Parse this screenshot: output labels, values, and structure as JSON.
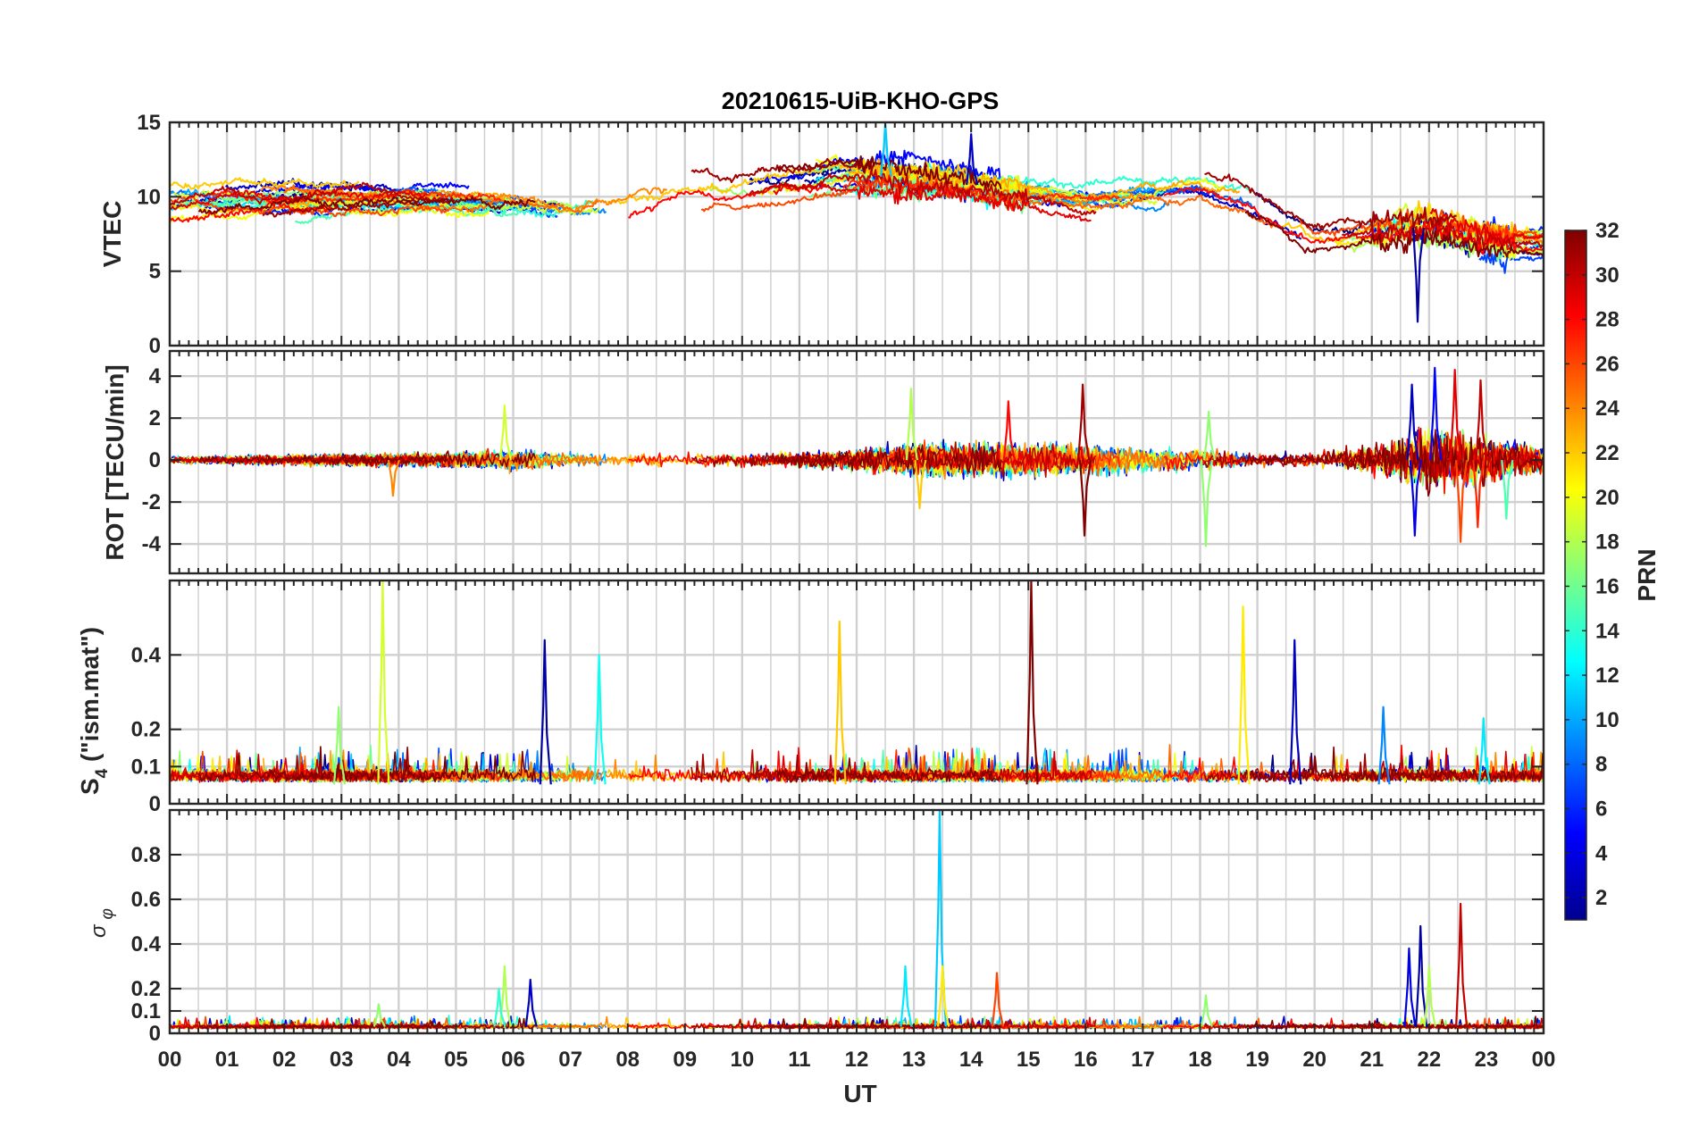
{
  "chart_data": {
    "type": "line",
    "title": "20210615-UiB-KHO-GPS",
    "xlabel": "UT",
    "x_tick_labels": [
      "00",
      "01",
      "02",
      "03",
      "04",
      "05",
      "06",
      "07",
      "08",
      "09",
      "10",
      "11",
      "12",
      "13",
      "14",
      "15",
      "16",
      "17",
      "18",
      "19",
      "20",
      "21",
      "22",
      "23",
      "00"
    ],
    "xlim_hours": [
      0,
      24
    ],
    "grid": true,
    "colormap": "jet",
    "colorbar": {
      "label": "PRN",
      "range": [
        1,
        32
      ],
      "tick_labels": [
        "2",
        "4",
        "6",
        "8",
        "10",
        "12",
        "14",
        "16",
        "18",
        "20",
        "22",
        "24",
        "26",
        "28",
        "30",
        "32"
      ],
      "placement": "right"
    },
    "panels": [
      {
        "id": "vtec",
        "ylabel": "VTEC",
        "ylim": [
          0,
          15
        ],
        "y_ticks": [
          0,
          5,
          10,
          15
        ],
        "y_tick_labels": [
          "0",
          "5",
          "10",
          "15"
        ],
        "baseline_by_hour": [
          [
            0,
            9.5
          ],
          [
            2,
            9.6
          ],
          [
            4,
            9.8
          ],
          [
            6,
            9.5
          ],
          [
            7,
            9.0
          ],
          [
            8,
            9.6
          ],
          [
            9,
            10.2
          ],
          [
            10,
            10.6
          ],
          [
            11,
            11.0
          ],
          [
            12,
            11.5
          ],
          [
            13,
            11.2
          ],
          [
            14,
            10.8
          ],
          [
            15,
            10.2
          ],
          [
            16,
            9.8
          ],
          [
            17,
            10.0
          ],
          [
            18,
            10.3
          ],
          [
            18.8,
            9.4
          ],
          [
            19.5,
            8.0
          ],
          [
            20,
            7.0
          ],
          [
            21,
            7.6
          ],
          [
            22,
            8.0
          ],
          [
            23,
            7.2
          ],
          [
            24,
            7.0
          ]
        ],
        "features": [
          {
            "prn": 2,
            "hour": 21.8,
            "min_value": 1.6
          },
          {
            "prn": 11,
            "hour": 12.5,
            "max_value": 15.0
          },
          {
            "prn": 3,
            "hour": 14.0,
            "max_value": 14.2
          }
        ]
      },
      {
        "id": "rot",
        "ylabel": "ROT [TECU/min]",
        "ylim": [
          -5.4,
          5.2
        ],
        "y_ticks": [
          -4,
          -2,
          0,
          2,
          4
        ],
        "y_tick_labels": [
          "-4",
          "-2",
          "0",
          "2",
          "4"
        ],
        "noise_by_hour": [
          [
            0,
            0.15
          ],
          [
            5,
            0.3
          ],
          [
            6,
            0.45
          ],
          [
            7,
            0.3
          ],
          [
            9,
            0.25
          ],
          [
            11,
            0.3
          ],
          [
            12,
            0.45
          ],
          [
            13,
            0.65
          ],
          [
            14,
            0.7
          ],
          [
            15,
            0.7
          ],
          [
            16,
            0.6
          ],
          [
            17,
            0.5
          ],
          [
            18,
            0.45
          ],
          [
            19,
            0.25
          ],
          [
            20,
            0.3
          ],
          [
            21,
            0.55
          ],
          [
            22,
            1.3
          ],
          [
            23,
            0.9
          ],
          [
            24,
            0.5
          ]
        ],
        "spikes": [
          {
            "prn": 19,
            "hour": 5.85,
            "value": 2.6
          },
          {
            "prn": 24,
            "hour": 3.9,
            "value": -1.7
          },
          {
            "prn": 18,
            "hour": 12.95,
            "value": 3.4
          },
          {
            "prn": 22,
            "hour": 13.1,
            "value": -2.3
          },
          {
            "prn": 28,
            "hour": 14.65,
            "value": 2.8
          },
          {
            "prn": 31,
            "hour": 15.95,
            "value": 3.6
          },
          {
            "prn": 32,
            "hour": 15.98,
            "value": -3.6
          },
          {
            "prn": 17,
            "hour": 18.1,
            "value": -4.1
          },
          {
            "prn": 17,
            "hour": 18.15,
            "value": 2.3
          },
          {
            "prn": 3,
            "hour": 21.7,
            "value": 3.6
          },
          {
            "prn": 5,
            "hour": 22.1,
            "value": 4.4
          },
          {
            "prn": 4,
            "hour": 21.75,
            "value": -3.6
          },
          {
            "prn": 29,
            "hour": 22.45,
            "value": 4.3
          },
          {
            "prn": 26,
            "hour": 22.55,
            "value": -3.9
          },
          {
            "prn": 30,
            "hour": 22.9,
            "value": 3.8
          },
          {
            "prn": 27,
            "hour": 22.85,
            "value": -3.2
          },
          {
            "prn": 15,
            "hour": 23.35,
            "value": -2.8
          }
        ]
      },
      {
        "id": "s4",
        "ylabel": "S4 (\"ism.mat\")",
        "ylim": [
          0,
          0.6
        ],
        "y_ticks": [
          0,
          0.1,
          0.2,
          0.4
        ],
        "y_tick_labels": [
          "0",
          "0.1",
          "0.2",
          "0.4"
        ],
        "baseline_range": [
          0.04,
          0.11
        ],
        "spikes": [
          {
            "prn": 19,
            "hour": 3.72,
            "value": 0.6
          },
          {
            "prn": 17,
            "hour": 2.95,
            "value": 0.26
          },
          {
            "prn": 2,
            "hour": 6.55,
            "value": 0.44
          },
          {
            "prn": 13,
            "hour": 7.5,
            "value": 0.4
          },
          {
            "prn": 22,
            "hour": 11.7,
            "value": 0.49
          },
          {
            "prn": 32,
            "hour": 15.05,
            "value": 0.6
          },
          {
            "prn": 21,
            "hour": 18.75,
            "value": 0.53
          },
          {
            "prn": 3,
            "hour": 19.65,
            "value": 0.44
          },
          {
            "prn": 9,
            "hour": 21.2,
            "value": 0.26
          },
          {
            "prn": 12,
            "hour": 22.95,
            "value": 0.23
          }
        ]
      },
      {
        "id": "sigma_phi",
        "ylabel": "σ φ",
        "ylim": [
          0,
          1.0
        ],
        "y_ticks": [
          0,
          0.1,
          0.2,
          0.4,
          0.6,
          0.8
        ],
        "y_tick_labels": [
          "0",
          "0.1",
          "0.2",
          "0.4",
          "0.6",
          "0.8"
        ],
        "baseline_range": [
          0.01,
          0.05
        ],
        "spikes": [
          {
            "prn": 17,
            "hour": 3.65,
            "value": 0.13
          },
          {
            "prn": 18,
            "hour": 5.85,
            "value": 0.3
          },
          {
            "prn": 14,
            "hour": 5.75,
            "value": 0.2
          },
          {
            "prn": 3,
            "hour": 6.3,
            "value": 0.24
          },
          {
            "prn": 12,
            "hour": 12.85,
            "value": 0.3
          },
          {
            "prn": 11,
            "hour": 13.45,
            "value": 1.0
          },
          {
            "prn": 21,
            "hour": 13.5,
            "value": 0.3
          },
          {
            "prn": 26,
            "hour": 14.45,
            "value": 0.27
          },
          {
            "prn": 4,
            "hour": 21.65,
            "value": 0.38
          },
          {
            "prn": 2,
            "hour": 21.85,
            "value": 0.48
          },
          {
            "prn": 18,
            "hour": 22.0,
            "value": 0.3
          },
          {
            "prn": 30,
            "hour": 22.55,
            "value": 0.58
          },
          {
            "prn": 17,
            "hour": 18.1,
            "value": 0.17
          }
        ]
      }
    ]
  }
}
